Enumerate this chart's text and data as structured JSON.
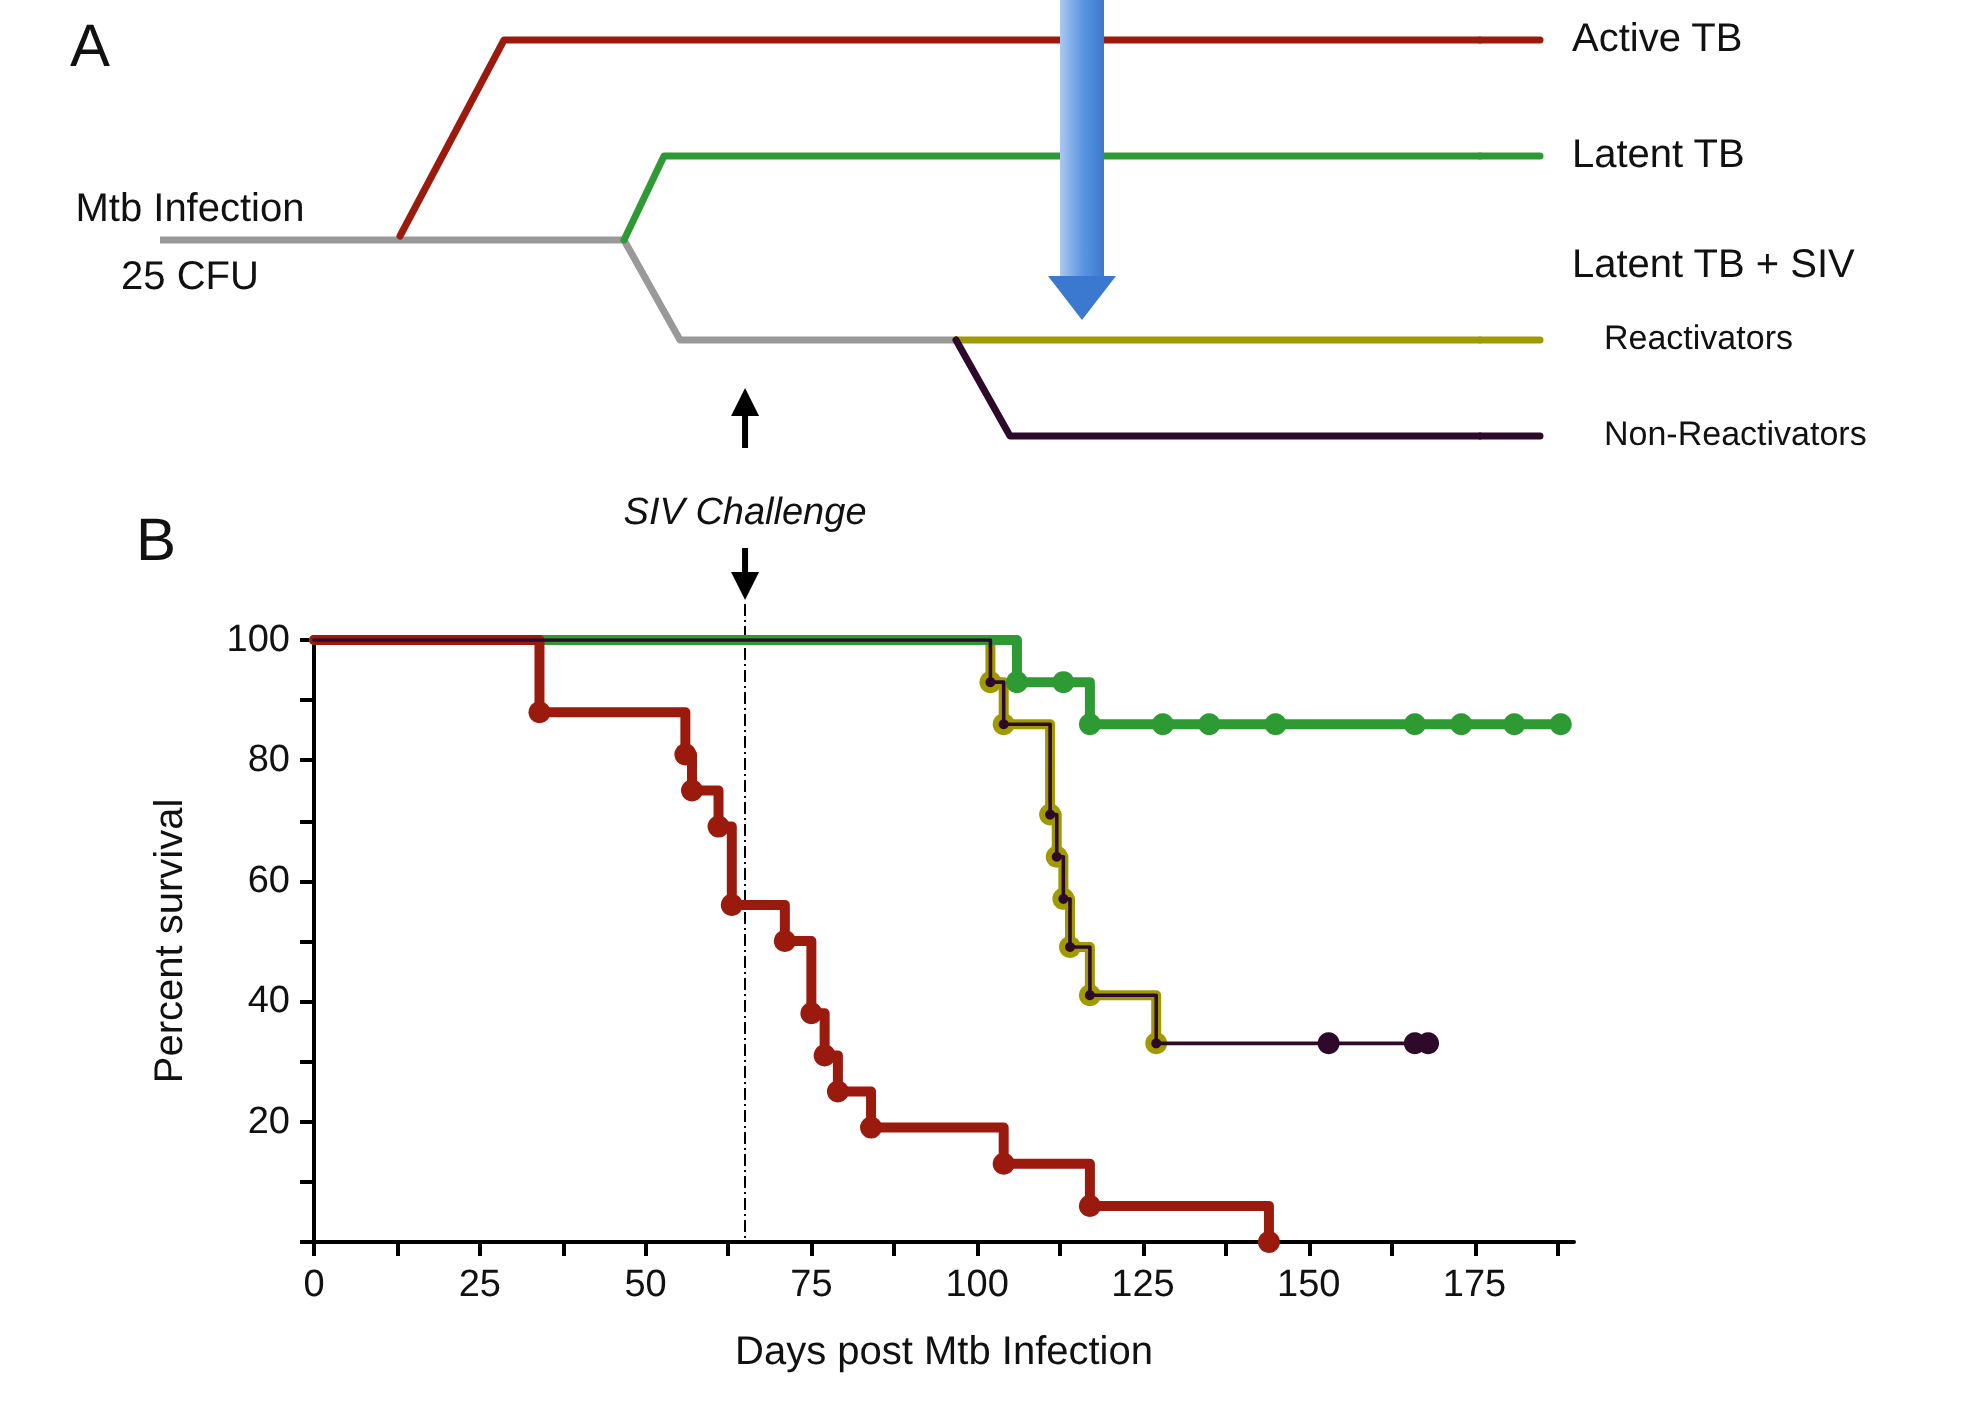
{
  "chart_data": {
    "type": "step",
    "xlabel": "Days post Mtb Infection",
    "ylabel": "Percent survival",
    "series": [
      {
        "name": "Active TB",
        "color": "#9b1a0e",
        "x": [
          0,
          34,
          56,
          57,
          61,
          63,
          71,
          75,
          77,
          79,
          84,
          104,
          117,
          144
        ],
        "values": [
          100,
          88,
          81,
          75,
          69,
          56,
          50,
          38,
          31,
          25,
          19,
          13,
          6,
          0
        ]
      },
      {
        "name": "Latent TB",
        "color": "#2e9a33",
        "x": [
          0,
          106,
          113,
          117,
          128,
          135,
          145,
          166,
          173,
          181,
          188
        ],
        "values": [
          100,
          93,
          93,
          86,
          86,
          86,
          86,
          86,
          86,
          86,
          86
        ]
      },
      {
        "name": "Reactivators",
        "color": "#a09a00",
        "x": [
          0,
          102,
          104,
          111,
          112,
          113,
          114,
          117,
          127
        ],
        "values": [
          100,
          93,
          86,
          71,
          64,
          57,
          49,
          41,
          33
        ]
      },
      {
        "name": "Non-Reactivators",
        "color": "#2d0a2a",
        "x": [
          0,
          102,
          104,
          111,
          112,
          113,
          114,
          117,
          127,
          153,
          166,
          168
        ],
        "values": [
          100,
          93,
          86,
          71,
          64,
          57,
          49,
          41,
          33,
          33,
          33,
          33
        ]
      }
    ],
    "xlim": [
      0,
      190
    ],
    "xticks": [
      0,
      {
        "value": 12.5,
        "label": null
      },
      25,
      {
        "value": 37.5,
        "label": null
      },
      50,
      {
        "value": 62.5,
        "label": null
      },
      75,
      {
        "value": 87.5,
        "label": null
      },
      100,
      {
        "value": 112.5,
        "label": null
      },
      125,
      {
        "value": 137.5,
        "label": null
      },
      150,
      {
        "value": 162.5,
        "label": null
      },
      175,
      {
        "value": 187.5,
        "label": null
      }
    ],
    "ylim": [
      0,
      100
    ],
    "yticks": [
      {
        "value": 0,
        "label": null
      },
      {
        "value": 10,
        "label": null
      },
      20,
      {
        "value": 30,
        "label": null
      },
      40,
      {
        "value": 50,
        "label": null
      },
      60,
      {
        "value": 70,
        "label": null
      },
      80,
      {
        "value": 90,
        "label": null
      },
      100
    ],
    "ref_lines": [
      {
        "axis": "x",
        "value": 65,
        "label": "SIV Challenge",
        "color": "#000000",
        "line_style": "dashed"
      }
    ],
    "annotations": [
      "A",
      "B",
      "Mtb Infection",
      "25 CFU",
      "Latent TB + SIV"
    ],
    "legend": "top",
    "grid": false,
    "marker": "circle",
    "line_style": "solid"
  }
}
